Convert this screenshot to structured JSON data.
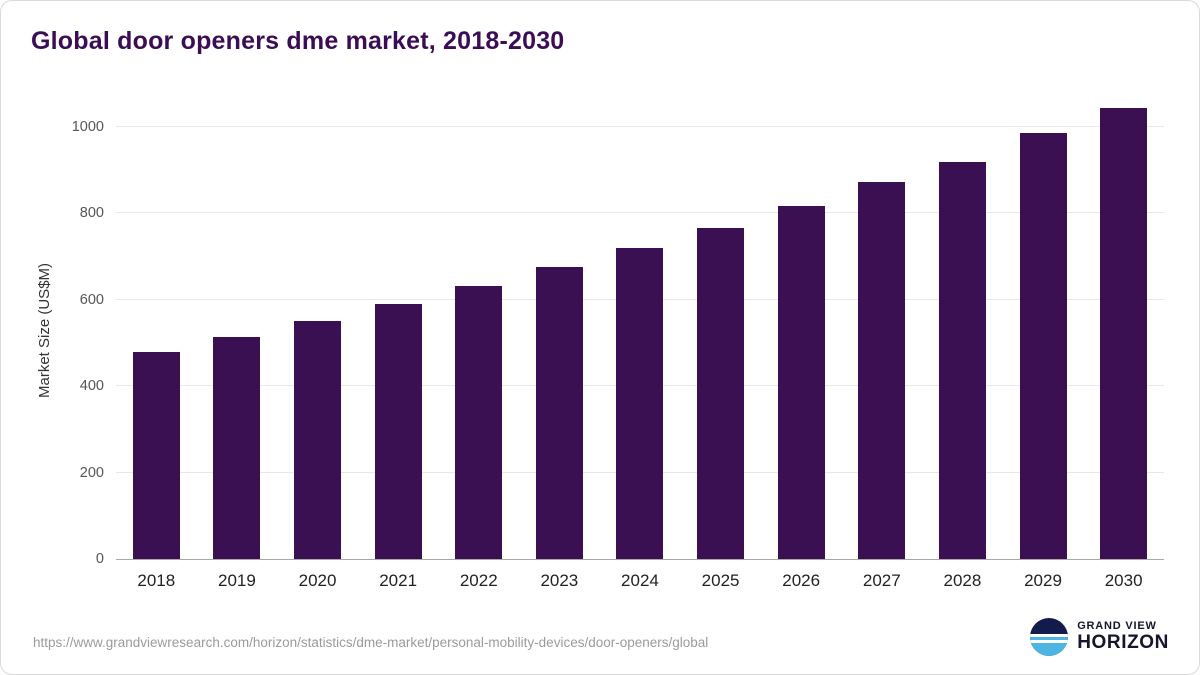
{
  "title": "Global door openers dme market, 2018-2030",
  "source_url": "https://www.grandviewresearch.com/horizon/statistics/dme-market/personal-mobility-devices/door-openers/global",
  "logo": {
    "line1": "GRAND VIEW",
    "line2": "HORIZON",
    "icon": "horizon-sun-over-water-icon",
    "navy": "#131b4d",
    "light_blue": "#4db5e2"
  },
  "chart_data": {
    "type": "bar",
    "title": "Global door openers dme market, 2018-2030",
    "categories": [
      "2018",
      "2019",
      "2020",
      "2021",
      "2022",
      "2023",
      "2024",
      "2025",
      "2026",
      "2027",
      "2028",
      "2029",
      "2030"
    ],
    "values": [
      479,
      513,
      550,
      590,
      631,
      675,
      720,
      767,
      818,
      872,
      920,
      985,
      1043
    ],
    "xlabel": "",
    "ylabel": "Market Size (US$M)",
    "ylim": [
      0,
      1060
    ],
    "yticks": [
      0,
      200,
      400,
      600,
      800,
      1000
    ],
    "grid": "horizontal",
    "legend": "none",
    "bar_color": "#3b1053"
  }
}
